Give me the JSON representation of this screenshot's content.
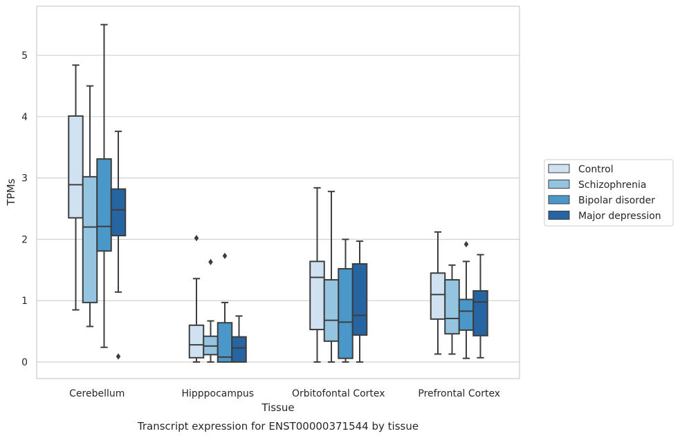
{
  "chart_data": {
    "type": "boxplot",
    "title": "",
    "caption": "Transcript expression for ENST00000371544 by tissue",
    "xlabel": "Tissue",
    "ylabel": "TPMs",
    "ylim": [
      -0.27,
      5.8
    ],
    "yticks": [
      0,
      1,
      2,
      3,
      4,
      5
    ],
    "grid": true,
    "legend_position": "right",
    "categories": [
      "Cerebellum",
      "Hipppocampus",
      "Orbitofontal Cortex",
      "Prefrontal Cortex"
    ],
    "series": [
      {
        "name": "Control",
        "color": "#d0e1f2",
        "boxes": [
          {
            "whislo": 0.85,
            "q1": 2.35,
            "med": 2.89,
            "q3": 4.01,
            "whishi": 4.84,
            "fliers": []
          },
          {
            "whislo": 0.0,
            "q1": 0.07,
            "med": 0.28,
            "q3": 0.6,
            "whishi": 1.36,
            "fliers": [
              2.02
            ]
          },
          {
            "whislo": 0.0,
            "q1": 0.53,
            "med": 1.38,
            "q3": 1.64,
            "whishi": 2.84,
            "fliers": []
          },
          {
            "whislo": 0.13,
            "q1": 0.7,
            "med": 1.1,
            "q3": 1.45,
            "whishi": 2.12,
            "fliers": []
          }
        ]
      },
      {
        "name": "Schizophrenia",
        "color": "#94c4df",
        "boxes": [
          {
            "whislo": 0.58,
            "q1": 0.97,
            "med": 2.2,
            "q3": 3.02,
            "whishi": 4.5,
            "fliers": []
          },
          {
            "whislo": 0.0,
            "q1": 0.12,
            "med": 0.26,
            "q3": 0.42,
            "whishi": 0.67,
            "fliers": [
              1.63
            ]
          },
          {
            "whislo": 0.0,
            "q1": 0.34,
            "med": 0.68,
            "q3": 1.34,
            "whishi": 2.78,
            "fliers": []
          },
          {
            "whislo": 0.13,
            "q1": 0.46,
            "med": 0.71,
            "q3": 1.34,
            "whishi": 1.58,
            "fliers": []
          }
        ]
      },
      {
        "name": "Bipolar disorder",
        "color": "#4a98c9",
        "boxes": [
          {
            "whislo": 0.24,
            "q1": 1.81,
            "med": 2.21,
            "q3": 3.31,
            "whishi": 5.5,
            "fliers": []
          },
          {
            "whislo": 0.0,
            "q1": 0.0,
            "med": 0.08,
            "q3": 0.64,
            "whishi": 0.97,
            "fliers": [
              1.73
            ]
          },
          {
            "whislo": 0.0,
            "q1": 0.06,
            "med": 0.65,
            "q3": 1.52,
            "whishi": 2.0,
            "fliers": []
          },
          {
            "whislo": 0.06,
            "q1": 0.52,
            "med": 0.83,
            "q3": 1.02,
            "whishi": 1.64,
            "fliers": [
              1.92
            ]
          }
        ]
      },
      {
        "name": "Major depression",
        "color": "#2764a2",
        "boxes": [
          {
            "whislo": 1.14,
            "q1": 2.06,
            "med": 2.48,
            "q3": 2.82,
            "whishi": 3.76,
            "fliers": [
              0.09
            ]
          },
          {
            "whislo": 0.0,
            "q1": 0.0,
            "med": 0.23,
            "q3": 0.41,
            "whishi": 0.75,
            "fliers": []
          },
          {
            "whislo": 0.0,
            "q1": 0.44,
            "med": 0.76,
            "q3": 1.6,
            "whishi": 1.97,
            "fliers": []
          },
          {
            "whislo": 0.07,
            "q1": 0.43,
            "med": 0.98,
            "q3": 1.16,
            "whishi": 1.75,
            "fliers": []
          }
        ]
      }
    ]
  }
}
